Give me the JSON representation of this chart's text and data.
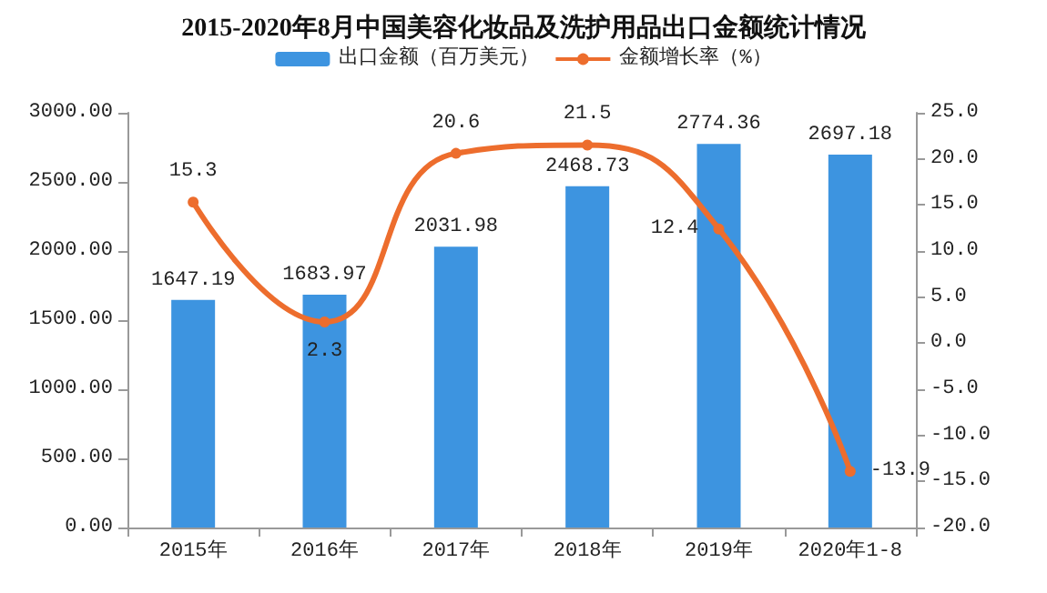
{
  "chart_data": {
    "type": "bar",
    "title": "2015-2020年8月中国美容化妆品及洗护用品出口金额统计情况",
    "categories": [
      "2015年",
      "2016年",
      "2017年",
      "2018年",
      "2019年",
      "2020年1-8"
    ],
    "series": [
      {
        "name": "出口金额（百万美元）",
        "color": "#3d94e0",
        "values": [
          1647.19,
          1683.97,
          2031.98,
          2468.73,
          2774.36,
          2697.18
        ]
      },
      {
        "name": "金额增长率（%）",
        "type": "line",
        "axis": "y2",
        "color": "#ed6d2d",
        "values": [
          15.3,
          2.3,
          20.6,
          21.5,
          12.4,
          -13.9
        ]
      }
    ],
    "ylim": [
      0,
      3000
    ],
    "yticks": [
      {
        "value": 0,
        "label": "0.00"
      },
      {
        "value": 500,
        "label": "500.00"
      },
      {
        "value": 1000,
        "label": "1000.00"
      },
      {
        "value": 1500,
        "label": "1500.00"
      },
      {
        "value": 2000,
        "label": "2000.00"
      },
      {
        "value": 2500,
        "label": "2500.00"
      },
      {
        "value": 3000,
        "label": "3000.00"
      }
    ],
    "y2lim": [
      -20,
      25
    ],
    "y2ticks": [
      {
        "value": -20,
        "label": "-20.0"
      },
      {
        "value": -15,
        "label": "-15.0"
      },
      {
        "value": -10,
        "label": "-10.0"
      },
      {
        "value": -5,
        "label": "-5.0"
      },
      {
        "value": 0,
        "label": "0.0"
      },
      {
        "value": 5,
        "label": "5.0"
      },
      {
        "value": 10,
        "label": "10.0"
      },
      {
        "value": 15,
        "label": "15.0"
      },
      {
        "value": 20,
        "label": "20.0"
      },
      {
        "value": 25,
        "label": "25.0"
      }
    ],
    "data_labels": true,
    "legend": "top",
    "grid": false,
    "marker": "circle"
  }
}
